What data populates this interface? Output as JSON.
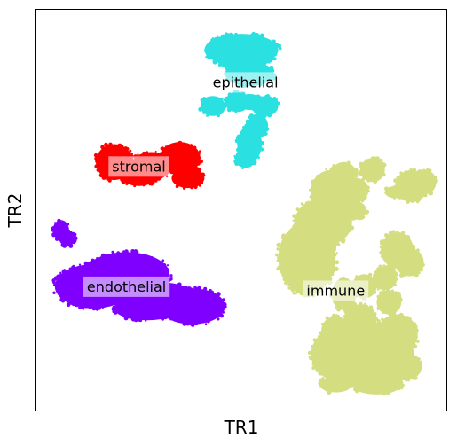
{
  "chart_data": {
    "type": "scatter",
    "xlabel": "TR1",
    "ylabel": "TR2",
    "xlim": [
      0,
      100
    ],
    "ylim": [
      0,
      100
    ],
    "grid": false,
    "legend": "none",
    "ticks": "none",
    "clusters": [
      {
        "label": "epithelial",
        "color": "#2ae0e0",
        "label_pos": [
          51,
          82
        ],
        "blobs": [
          [
            50,
            90,
            9,
            4
          ],
          [
            48,
            89,
            4.5,
            4
          ],
          [
            53,
            89,
            4.5,
            3.5
          ],
          [
            52,
            84,
            6,
            3
          ],
          [
            43,
            76,
            3,
            2.5
          ],
          [
            49,
            77,
            3,
            2.5
          ],
          [
            52,
            77,
            3,
            2
          ],
          [
            56,
            76,
            3,
            2.5
          ],
          [
            54,
            71,
            2.5,
            3
          ],
          [
            52,
            66.5,
            3,
            4.5
          ],
          [
            51,
            63,
            2.5,
            2.5
          ]
        ]
      },
      {
        "label": "stromal",
        "color": "#ff0000",
        "label_pos": [
          25,
          61
        ],
        "blobs": [
          [
            19,
            62,
            4.5,
            4.5
          ],
          [
            28,
            61,
            5,
            3.5
          ],
          [
            35,
            63,
            5,
            4
          ],
          [
            37,
            58,
            4,
            2.5
          ],
          [
            25,
            58,
            4,
            2
          ]
        ]
      },
      {
        "label": "endothelial",
        "color": "#7f00ff",
        "label_pos": [
          22,
          31
        ],
        "blobs": [
          [
            6,
            45,
            2,
            2.5
          ],
          [
            7.5,
            43,
            2,
            2
          ],
          [
            14,
            31,
            9.5,
            5.5
          ],
          [
            22,
            34,
            10.5,
            5.5
          ],
          [
            30,
            28,
            9,
            4
          ],
          [
            38,
            26,
            8,
            4.5
          ],
          [
            27,
            25.5,
            8,
            3
          ]
        ]
      },
      {
        "label": "immune",
        "color": "#d4de80",
        "label_pos": [
          73,
          30
        ],
        "blobs": [
          [
            66,
            38,
            7,
            9
          ],
          [
            70,
            47,
            7,
            6
          ],
          [
            72,
            55,
            5,
            5
          ],
          [
            75,
            59,
            3,
            3
          ],
          [
            78,
            55,
            3,
            3
          ],
          [
            82,
            60,
            3,
            3
          ],
          [
            77,
            50,
            3.5,
            2.5
          ],
          [
            75,
            29,
            3,
            4
          ],
          [
            80,
            31,
            3,
            3
          ],
          [
            85,
            33,
            3,
            3
          ],
          [
            88,
            40,
            4,
            4.5
          ],
          [
            91,
            37,
            3.5,
            3.5
          ],
          [
            75,
            14,
            8,
            7
          ],
          [
            83,
            14,
            9,
            8
          ],
          [
            88,
            19,
            5,
            5
          ],
          [
            90,
            11,
            4,
            3.5
          ],
          [
            79,
            23,
            4,
            3.5
          ],
          [
            86,
            27,
            3,
            3
          ],
          [
            73,
            20,
            3.5,
            3.5
          ],
          [
            83,
            6.5,
            6,
            2.5
          ],
          [
            73,
            6.5,
            4,
            2
          ],
          [
            91.5,
            56,
            4,
            4
          ],
          [
            95,
            57,
            2.5,
            3
          ],
          [
            87.5,
            54.5,
            2.5,
            1.5
          ]
        ]
      }
    ]
  }
}
